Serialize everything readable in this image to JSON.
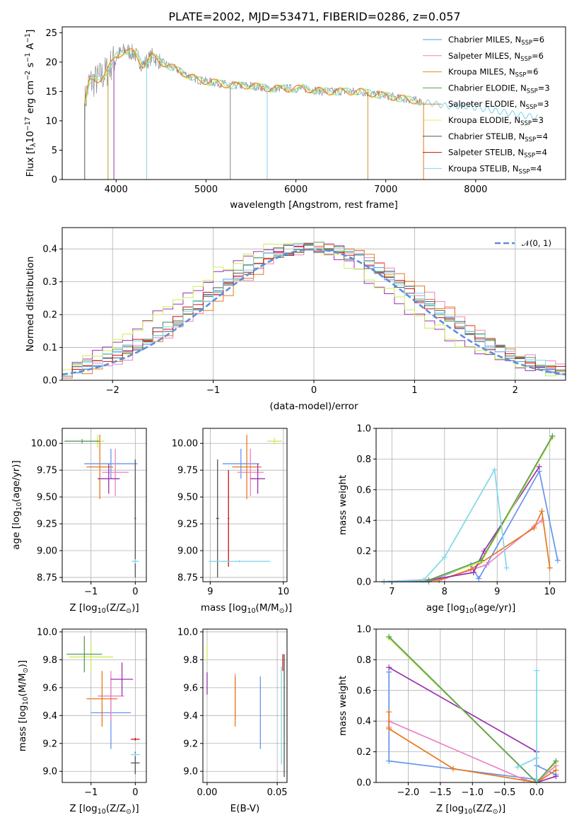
{
  "title": "PLATE=2002, MJD=53471, FIBERID=0286, z=0.057",
  "legend_entries": [
    {
      "label": "Chabrier MILES, N",
      "sub": "SSP",
      "suffix": "=6",
      "color": "#6495ED"
    },
    {
      "label": "Salpeter MILES, N",
      "sub": "SSP",
      "suffix": "=6",
      "color": "#EE82C0"
    },
    {
      "label": "Kroupa MILES, N",
      "sub": "SSP",
      "suffix": "=6",
      "color": "#C8962A"
    },
    {
      "label": "Chabrier ELODIE, N",
      "sub": "SSP",
      "suffix": "=3",
      "color": "#5A9A5A"
    },
    {
      "label": "Salpeter ELODIE, N",
      "sub": "SSP",
      "suffix": "=3",
      "color": "#E8781E"
    },
    {
      "label": "Kroupa ELODIE, N",
      "sub": "SSP",
      "suffix": "=3",
      "color": "#E8E860"
    },
    {
      "label": "Chabrier STELIB, N",
      "sub": "SSP",
      "suffix": "=4",
      "color": "#555555"
    },
    {
      "label": "Salpeter STELIB, N",
      "sub": "SSP",
      "suffix": "=4",
      "color": "#CC1111"
    },
    {
      "label": "Kroupa STELIB, N",
      "sub": "SSP",
      "suffix": "=4",
      "color": "#80D8E8"
    }
  ],
  "chart_data": [
    {
      "type": "line",
      "name": "spectrum",
      "xlabel": "wavelength [Angstrom, rest frame]",
      "ylabel": "Flux [f",
      "ylabel_sub": "λ",
      "ylabel_mid": "10",
      "ylabel_sup1": "−17",
      "ylabel_mid2": " erg cm",
      "ylabel_sup2": "−2",
      "ylabel_mid3": " s",
      "ylabel_sup3": "−1",
      "ylabel_end": " A",
      "ylabel_sup4": "−1",
      "ylabel_close": "]",
      "xlim": [
        3400,
        9000
      ],
      "ylim": [
        0,
        26
      ],
      "xticks": [
        4000,
        5000,
        6000,
        7000,
        8000
      ],
      "yticks": [
        0,
        5,
        10,
        15,
        20,
        25
      ],
      "data_envelope": {
        "x": [
          3650,
          3700,
          3800,
          3900,
          4000,
          4100,
          4200,
          4300,
          4400,
          4500,
          4700,
          4900,
          5100,
          5300,
          5500,
          5700,
          5900,
          6100,
          6300,
          6500,
          6700,
          6900,
          7100,
          7300,
          7500,
          7700,
          7900,
          8100,
          8300,
          8500,
          8700
        ],
        "y": [
          13,
          16.5,
          17,
          18.5,
          21,
          22,
          21.5,
          19.5,
          21,
          20,
          18.5,
          17,
          16.5,
          16,
          16,
          15.5,
          15.5,
          15.5,
          15,
          15,
          15,
          14.5,
          14,
          13.5,
          13,
          12.5,
          12.5,
          12,
          11.5,
          11,
          10.5
        ]
      }
    },
    {
      "type": "line",
      "name": "residual histograms",
      "xlabel": "(data-model)/error",
      "ylabel": "Normed distribution",
      "xlim": [
        -2.5,
        2.5
      ],
      "ylim": [
        0,
        0.465
      ],
      "xticks": [
        -2,
        -1,
        0,
        1,
        2
      ],
      "yticks": [
        0.0,
        0.1,
        0.2,
        0.3,
        0.4
      ],
      "legend": "𝒩(0, 1)",
      "gaussian": {
        "mu": 0,
        "sigma": 1
      }
    },
    {
      "type": "scatter",
      "name": "age vs Z",
      "xlabel": "Z [log",
      "xlabel_sub": "10",
      "xlabel_rest": "(Z/Z",
      "xlabel_sub2": "⊙",
      "xlabel_close": ")]",
      "ylabel": "age  [log",
      "ylabel_sub": "10",
      "ylabel_rest": "(age/yr)]",
      "xlim": [
        -1.65,
        0.25
      ],
      "ylim": [
        8.71,
        10.14
      ],
      "xticks": [
        -1,
        0
      ],
      "yticks": [
        8.75,
        9.0,
        9.25,
        9.5,
        9.75,
        10.0
      ],
      "points": [
        {
          "x": -0.55,
          "y": 9.81,
          "xerr": 0.6,
          "yerr": 0.14,
          "color": "#6495ED"
        },
        {
          "x": -0.45,
          "y": 9.73,
          "xerr": 0.3,
          "yerr": 0.22,
          "color": "#EE82C0"
        },
        {
          "x": -0.8,
          "y": 9.78,
          "xerr": 0.3,
          "yerr": 0.3,
          "color": "#E8781E"
        },
        {
          "x": -0.6,
          "y": 9.67,
          "xerr": 0.25,
          "yerr": 0.14,
          "color": "#9B30B0"
        },
        {
          "x": -0.85,
          "y": 10.02,
          "xerr": 0.15,
          "yerr": 0.06,
          "color": "#CCEE55"
        },
        {
          "x": -1.2,
          "y": 10.02,
          "xerr": 0.4,
          "yerr": 0.02,
          "color": "#5A9A5A"
        },
        {
          "x": 0.0,
          "y": 9.3,
          "xerr": 0.02,
          "yerr": 0.55,
          "color": "#555555"
        },
        {
          "x": 0.0,
          "y": 8.9,
          "xerr": 0.08,
          "yerr": 0.02,
          "color": "#80D8E8"
        }
      ]
    },
    {
      "type": "scatter",
      "name": "age vs mass",
      "xlabel": "mass [log",
      "xlabel_sub": "10",
      "xlabel_rest": "(M/M",
      "xlabel_sub2": "⊙",
      "xlabel_close": ")]",
      "xlim": [
        8.9,
        10.05
      ],
      "ylim": [
        8.71,
        10.14
      ],
      "xticks": [
        9,
        10
      ],
      "yticks": [
        8.75,
        9.0,
        9.25,
        9.5,
        9.75,
        10.0
      ],
      "points": [
        {
          "x": 9.42,
          "y": 9.81,
          "xerr": 0.25,
          "yerr": 0.14,
          "color": "#6495ED"
        },
        {
          "x": 9.55,
          "y": 9.73,
          "xerr": 0.18,
          "yerr": 0.22,
          "color": "#EE82C0"
        },
        {
          "x": 9.5,
          "y": 9.78,
          "xerr": 0.2,
          "yerr": 0.3,
          "color": "#E8781E"
        },
        {
          "x": 9.65,
          "y": 9.67,
          "xerr": 0.1,
          "yerr": 0.14,
          "color": "#9B30B0"
        },
        {
          "x": 9.88,
          "y": 10.02,
          "xerr": 0.1,
          "yerr": 0.03,
          "color": "#CCEE55"
        },
        {
          "x": 9.1,
          "y": 9.3,
          "xerr": 0.02,
          "yerr": 0.55,
          "color": "#555555"
        },
        {
          "x": 9.25,
          "y": 9.3,
          "xerr": 0.01,
          "yerr": 0.45,
          "color": "#CC1111"
        },
        {
          "x": 9.4,
          "y": 8.9,
          "xerr": 0.42,
          "yerr": 0.01,
          "color": "#80D8E8"
        }
      ]
    },
    {
      "type": "line",
      "name": "mass weight vs age",
      "xlabel": "age  [log",
      "xlabel_sub": "10",
      "xlabel_rest": "(age/yr)]",
      "ylabel": "mass weight",
      "xlim": [
        6.7,
        10.3
      ],
      "ylim": [
        0,
        1.0
      ],
      "xticks": [
        7,
        8,
        9,
        10
      ],
      "yticks": [
        0.0,
        0.2,
        0.4,
        0.6,
        0.8,
        1.0
      ],
      "series": [
        {
          "color": "#6495ED",
          "x": [
            6.85,
            7.7,
            8.5,
            8.65,
            9.8,
            10.15
          ],
          "y": [
            0.0,
            0.0,
            0.11,
            0.02,
            0.72,
            0.14
          ]
        },
        {
          "color": "#EE82C0",
          "x": [
            6.85,
            8.0,
            8.8,
            9.7,
            9.85
          ],
          "y": [
            0.0,
            0.02,
            0.11,
            0.36,
            0.4
          ]
        },
        {
          "color": "#E8781E",
          "x": [
            6.85,
            7.9,
            8.5,
            9.7,
            9.85,
            10.0
          ],
          "y": [
            0.0,
            0.01,
            0.08,
            0.35,
            0.46,
            0.09
          ]
        },
        {
          "color": "#9B30B0",
          "x": [
            6.85,
            7.7,
            8.55,
            8.75,
            9.8
          ],
          "y": [
            0.0,
            0.01,
            0.06,
            0.2,
            0.75
          ]
        },
        {
          "color": "#CCEE55",
          "x": [
            6.85,
            7.7,
            8.7,
            10.05
          ],
          "y": [
            0.0,
            0.01,
            0.13,
            0.94
          ]
        },
        {
          "color": "#5A9A5A",
          "x": [
            6.85,
            7.7,
            8.7,
            10.05
          ],
          "y": [
            0.0,
            0.01,
            0.14,
            0.95
          ]
        },
        {
          "color": "#80D8E8",
          "x": [
            6.85,
            7.6,
            8.0,
            8.95,
            9.18
          ],
          "y": [
            0.0,
            0.01,
            0.16,
            0.73,
            0.09
          ]
        }
      ]
    },
    {
      "type": "scatter",
      "name": "mass vs Z",
      "xlabel": "Z [log",
      "xlabel_sub": "10",
      "xlabel_rest": "(Z/Z",
      "xlabel_sub2": "⊙",
      "xlabel_close": ")]",
      "ylabel": "mass [log",
      "ylabel_sub": "10",
      "ylabel_rest": "(M/M",
      "ylabel_sub2": "⊙",
      "ylabel_close": ")]",
      "xlim": [
        -1.65,
        0.25
      ],
      "ylim": [
        8.92,
        10.02
      ],
      "xticks": [
        -1,
        0
      ],
      "yticks": [
        9.0,
        9.2,
        9.4,
        9.6,
        9.8,
        10.0
      ],
      "points": [
        {
          "x": -0.55,
          "y": 9.42,
          "xerr": 0.45,
          "yerr": 0.26,
          "color": "#6495ED"
        },
        {
          "x": -0.55,
          "y": 9.54,
          "xerr": 0.3,
          "yerr": 0.18,
          "color": "#EE82C0"
        },
        {
          "x": -0.75,
          "y": 9.52,
          "xerr": 0.35,
          "yerr": 0.2,
          "color": "#E8781E"
        },
        {
          "x": -0.3,
          "y": 9.66,
          "xerr": 0.25,
          "yerr": 0.12,
          "color": "#9B30B0"
        },
        {
          "x": -1.0,
          "y": 9.82,
          "xerr": 0.5,
          "yerr": 0.1,
          "color": "#CCEE55"
        },
        {
          "x": -1.15,
          "y": 9.84,
          "xerr": 0.4,
          "yerr": 0.13,
          "color": "#5A9A5A"
        },
        {
          "x": 0.0,
          "y": 9.06,
          "xerr": 0.1,
          "yerr": 0.08,
          "color": "#555555"
        },
        {
          "x": 0.0,
          "y": 9.23,
          "xerr": 0.1,
          "yerr": 0.01,
          "color": "#CC1111"
        },
        {
          "x": 0.0,
          "y": 9.12,
          "xerr": 0.1,
          "yerr": 0.01,
          "color": "#80D8E8"
        }
      ]
    },
    {
      "type": "scatter",
      "name": "mass vs E(B-V)",
      "xlabel": "E(B-V)",
      "xlim": [
        -0.003,
        0.057
      ],
      "ylim": [
        8.92,
        10.02
      ],
      "xticks": [
        0.0,
        0.05
      ],
      "yticks": [
        9.0,
        9.2,
        9.4,
        9.6,
        9.8,
        10.0
      ],
      "points": [
        {
          "x": 0.0,
          "y": 9.85,
          "xerr": 0.0,
          "yerr": 0.06,
          "color": "#CCEE55"
        },
        {
          "x": 0.0,
          "y": 9.63,
          "xerr": 0.0,
          "yerr": 0.08,
          "color": "#9B30B0"
        },
        {
          "x": 0.02,
          "y": 9.54,
          "xerr": 0.0,
          "yerr": 0.16,
          "color": "#EE82C0"
        },
        {
          "x": 0.02,
          "y": 9.5,
          "xerr": 0.0,
          "yerr": 0.18,
          "color": "#E8781E"
        },
        {
          "x": 0.038,
          "y": 9.42,
          "xerr": 0.0,
          "yerr": 0.26,
          "color": "#6495ED"
        },
        {
          "x": 0.055,
          "y": 9.4,
          "xerr": 0.0,
          "yerr": 0.44,
          "color": "#555555"
        },
        {
          "x": 0.054,
          "y": 9.78,
          "xerr": 0.0,
          "yerr": 0.06,
          "color": "#CC1111"
        },
        {
          "x": 0.053,
          "y": 9.4,
          "xerr": 0.0,
          "yerr": 0.35,
          "color": "#80D8E8"
        }
      ]
    },
    {
      "type": "line",
      "name": "mass weight vs Z",
      "xlabel": "Z [log",
      "xlabel_sub": "10",
      "xlabel_rest": "(Z/Z",
      "xlabel_sub2": "⊙",
      "xlabel_close": ")]",
      "ylabel": "mass weight",
      "xlim": [
        -2.5,
        0.45
      ],
      "ylim": [
        0,
        1.0
      ],
      "xticks": [
        -2.0,
        -1.5,
        -1.0,
        -0.5,
        0.0
      ],
      "yticks": [
        0.0,
        0.2,
        0.4,
        0.6,
        0.8,
        1.0
      ],
      "series": [
        {
          "color": "#6495ED",
          "x": [
            -2.3,
            -2.3,
            0.0,
            0.0,
            0.3
          ],
          "y": [
            0.72,
            0.14,
            0.02,
            0.11,
            0.05
          ]
        },
        {
          "color": "#EE82C0",
          "x": [
            -2.3,
            -2.3,
            -0.2,
            0.0,
            0.3
          ],
          "y": [
            0.36,
            0.4,
            0.02,
            0.0,
            0.11
          ]
        },
        {
          "color": "#E8781E",
          "x": [
            -2.3,
            -2.3,
            -1.3,
            0.0,
            0.3
          ],
          "y": [
            0.46,
            0.35,
            0.09,
            0.0,
            0.08
          ]
        },
        {
          "color": "#9B30B0",
          "x": [
            -2.3,
            0.0,
            0.0,
            0.3
          ],
          "y": [
            0.75,
            0.2,
            0.0,
            0.04
          ]
        },
        {
          "color": "#CCEE55",
          "x": [
            -2.3,
            0.0,
            0.3
          ],
          "y": [
            0.94,
            0.0,
            0.13
          ]
        },
        {
          "color": "#5A9A5A",
          "x": [
            -2.3,
            0.0,
            0.3
          ],
          "y": [
            0.95,
            0.0,
            0.14
          ]
        },
        {
          "color": "#80D8E8",
          "x": [
            -0.3,
            0.0,
            0.0,
            0.0
          ],
          "y": [
            0.1,
            0.16,
            0.73,
            0.0
          ]
        }
      ]
    }
  ]
}
